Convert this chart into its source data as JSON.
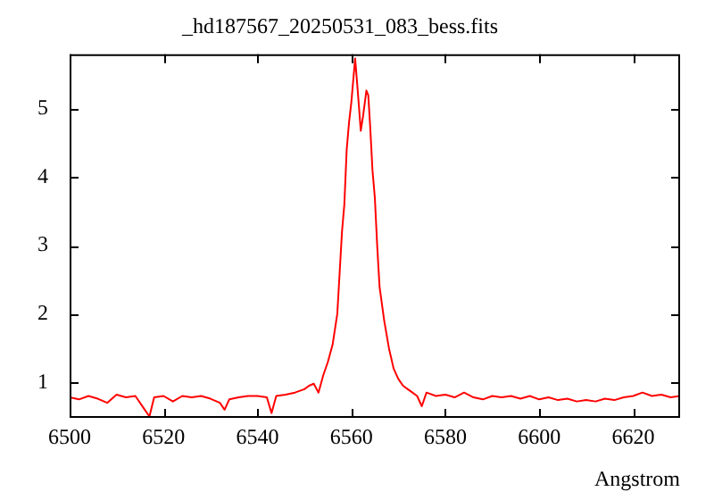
{
  "chart_data": {
    "type": "line",
    "title": "_hd187567_20250531_083_bess.fits",
    "xlabel": "Angstrom",
    "xlim": [
      6500,
      6630
    ],
    "xticks": [
      6500,
      6520,
      6540,
      6560,
      6580,
      6600,
      6620
    ],
    "ylim": [
      0.48,
      5.8
    ],
    "yticks": [
      1,
      2,
      3,
      4,
      5
    ],
    "series": [
      {
        "color": "#ff0000",
        "x": [
          6500,
          6502,
          6504,
          6506,
          6508,
          6510,
          6512,
          6514,
          6516,
          6517,
          6518,
          6520,
          6522,
          6524,
          6526,
          6528,
          6530,
          6532,
          6533,
          6534,
          6536,
          6538,
          6540,
          6542,
          6543,
          6544,
          6546,
          6548,
          6550,
          6551,
          6552,
          6553,
          6554,
          6555,
          6556,
          6557,
          6557.5,
          6558,
          6558.5,
          6559,
          6559.5,
          6560,
          6560.8,
          6561.2,
          6561.6,
          6562,
          6562.5,
          6563.2,
          6563.6,
          6564,
          6564.5,
          6565,
          6565.5,
          6566,
          6567,
          6568,
          6569,
          6570,
          6571,
          6572,
          6573,
          6574,
          6575,
          6576,
          6578,
          6580,
          6582,
          6584,
          6586,
          6588,
          6590,
          6592,
          6594,
          6596,
          6598,
          6600,
          6602,
          6604,
          6606,
          6608,
          6610,
          6612,
          6614,
          6616,
          6618,
          6620,
          6622,
          6624,
          6626,
          6628,
          6630
        ],
        "values": [
          0.78,
          0.75,
          0.8,
          0.76,
          0.7,
          0.82,
          0.78,
          0.8,
          0.6,
          0.5,
          0.78,
          0.8,
          0.72,
          0.8,
          0.78,
          0.8,
          0.76,
          0.7,
          0.6,
          0.75,
          0.78,
          0.8,
          0.8,
          0.78,
          0.55,
          0.8,
          0.82,
          0.85,
          0.9,
          0.95,
          0.98,
          0.85,
          1.1,
          1.3,
          1.55,
          2.0,
          2.6,
          3.2,
          3.6,
          4.4,
          4.8,
          5.1,
          5.74,
          5.4,
          5.05,
          4.68,
          4.9,
          5.27,
          5.2,
          4.75,
          4.1,
          3.7,
          3.0,
          2.4,
          1.9,
          1.5,
          1.2,
          1.05,
          0.95,
          0.9,
          0.85,
          0.8,
          0.65,
          0.85,
          0.8,
          0.82,
          0.78,
          0.85,
          0.78,
          0.75,
          0.8,
          0.78,
          0.8,
          0.76,
          0.8,
          0.75,
          0.78,
          0.74,
          0.76,
          0.72,
          0.74,
          0.72,
          0.76,
          0.74,
          0.78,
          0.8,
          0.85,
          0.8,
          0.82,
          0.78,
          0.8
        ]
      }
    ]
  }
}
